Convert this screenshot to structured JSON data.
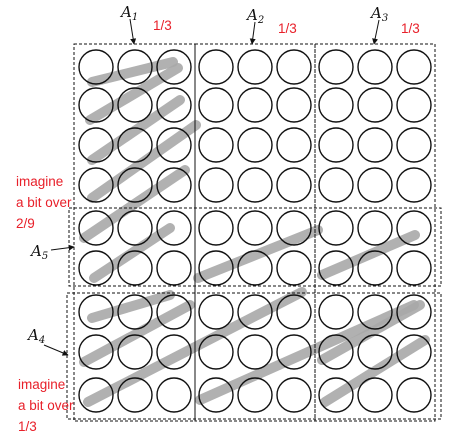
{
  "labels": {
    "a1": {
      "letter": "A",
      "sub": "1"
    },
    "a2": {
      "letter": "A",
      "sub": "2"
    },
    "a3": {
      "letter": "A",
      "sub": "3"
    },
    "a4": {
      "letter": "A",
      "sub": "4"
    },
    "a5": {
      "letter": "A",
      "sub": "5"
    }
  },
  "annotations": {
    "frac1": "1/3",
    "frac2": "1/3",
    "frac3": "1/3",
    "note_upper": [
      "imagine",
      "a bit over",
      "2/9"
    ],
    "note_lower": [
      "imagine",
      "a bit over",
      "1/3"
    ]
  },
  "grid": {
    "rows": 9,
    "cols": 9
  },
  "colors": {
    "annotation": "#e8202a",
    "stroke": "#a8a8a8",
    "circle": "#111111",
    "box": "#111111"
  }
}
